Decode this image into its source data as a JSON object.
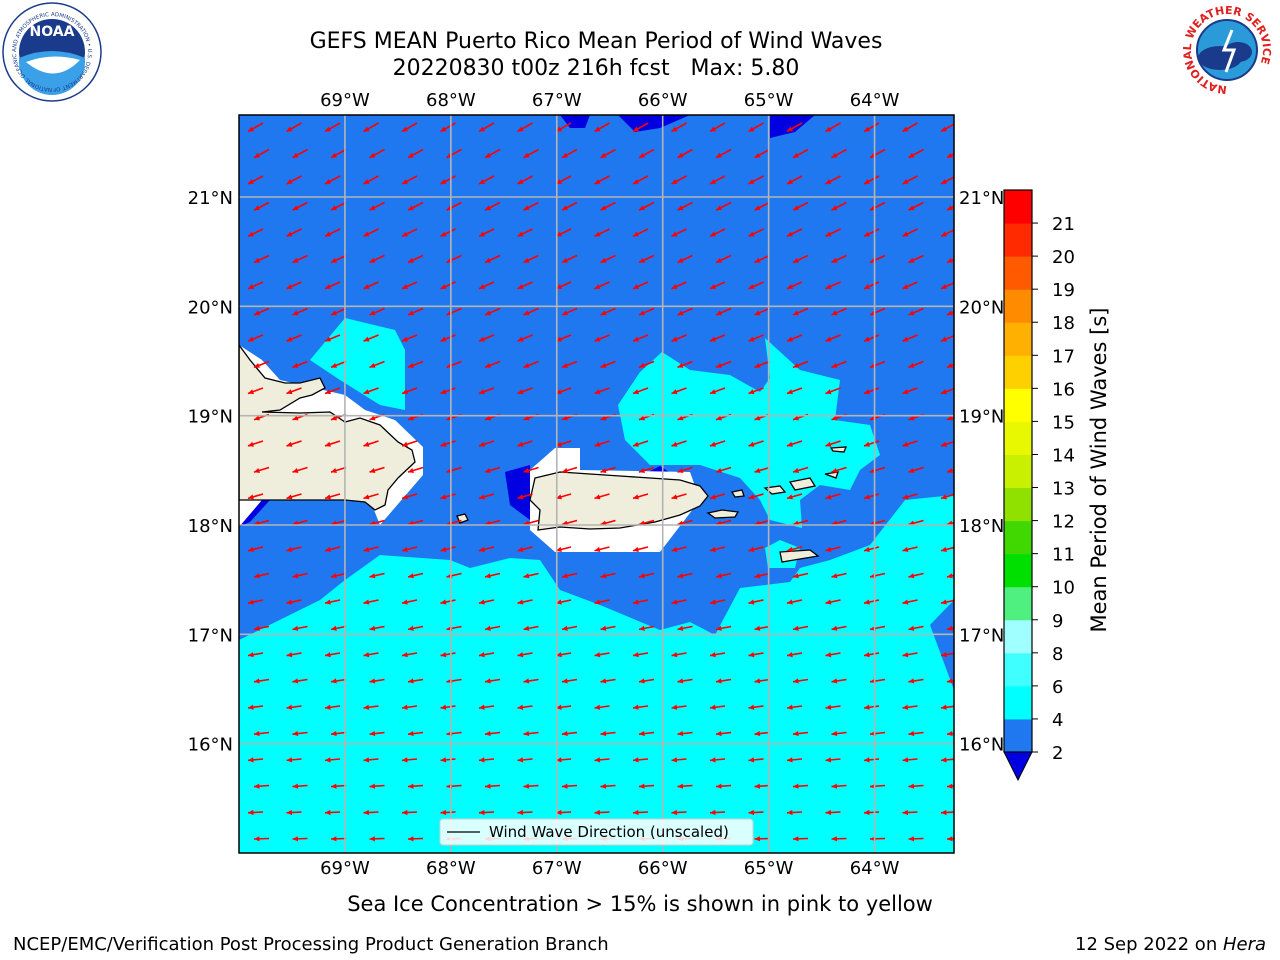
{
  "title": {
    "line1": "GEFS MEAN Puerto Rico Mean Period of Wind Waves",
    "line2": "20220830 t00z 216h fcst   Max: 5.80"
  },
  "map": {
    "lon_range": [
      -70.0,
      -63.25
    ],
    "lat_range": [
      15.0,
      21.75
    ],
    "lon_ticks": [
      {
        "value": -69,
        "label": "69°W"
      },
      {
        "value": -68,
        "label": "68°W"
      },
      {
        "value": -67,
        "label": "67°W"
      },
      {
        "value": -66,
        "label": "66°W"
      },
      {
        "value": -65,
        "label": "65°W"
      },
      {
        "value": -64,
        "label": "64°W"
      }
    ],
    "lat_ticks": [
      {
        "value": 16,
        "label": "16°N"
      },
      {
        "value": 17,
        "label": "17°N"
      },
      {
        "value": 18,
        "label": "18°N"
      },
      {
        "value": 19,
        "label": "19°N"
      },
      {
        "value": 20,
        "label": "20°N"
      },
      {
        "value": 21,
        "label": "21°N"
      }
    ],
    "legend_label": "Wind Wave Direction (unscaled)",
    "colors": {
      "ocean_2_4": "#1f78f0",
      "ocean_4_6": "#00ffff",
      "ocean_lt_2": "#0000e0",
      "land": "#efeedc",
      "arrow": "#ff0000",
      "grid": "#b4b4b4"
    }
  },
  "colorbar": {
    "label": "Mean Period of Wind Waves [s]",
    "ticks": [
      "2",
      "4",
      "6",
      "8",
      "9",
      "10",
      "11",
      "12",
      "13",
      "14",
      "15",
      "16",
      "17",
      "18",
      "19",
      "20",
      "21"
    ],
    "colors": [
      "#1f78f0",
      "#00ffff",
      "#40ffff",
      "#a0ffff",
      "#50f080",
      "#00e000",
      "#40d800",
      "#90e000",
      "#c8f000",
      "#e8f800",
      "#ffff00",
      "#ffd000",
      "#ffb000",
      "#ff8c00",
      "#ff5a00",
      "#ff2a00",
      "#ff0000"
    ],
    "underflow_color": "#0000e0"
  },
  "caption": "Sea Ice Concentration > 15% is shown in pink to yellow",
  "footer": {
    "left": "NCEP/EMC/Verification Post Processing Product Generation Branch",
    "right_prefix": "12 Sep 2022 on ",
    "right_italic": "Hera"
  },
  "logos": {
    "noaa_text": "NOAA",
    "noaa_ring": "NATIONAL OCEANIC AND ATMOSPHERIC ADMINISTRATION • U.S. DEPARTMENT OF COMMERCE",
    "nws_ring": "NATIONAL WEATHER SERVICE"
  }
}
